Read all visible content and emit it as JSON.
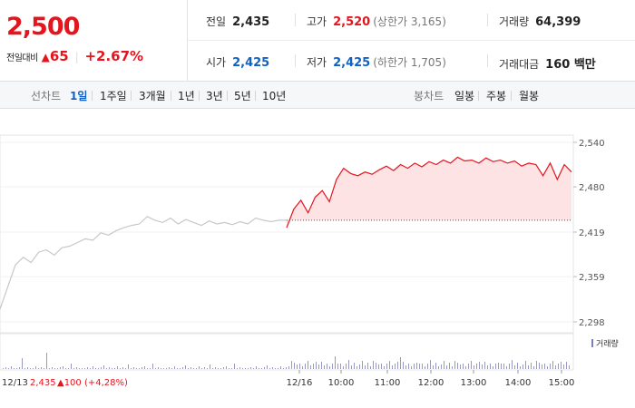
{
  "quote": {
    "price": "2,500",
    "change_label": "전일대비",
    "change_arrow": "▲",
    "change_abs": "65",
    "change_pct": "+2.67%"
  },
  "stats": {
    "prev_close": {
      "label": "전일",
      "value": "2,435"
    },
    "high": {
      "label": "고가",
      "value": "2,520",
      "sub": "(상한가 3,165)"
    },
    "volume": {
      "label": "거래량",
      "value": "64,399"
    },
    "open": {
      "label": "시가",
      "value": "2,425"
    },
    "low": {
      "label": "저가",
      "value": "2,425",
      "sub": "(하한가 1,705)"
    },
    "amount": {
      "label": "거래대금",
      "value": "160 백만"
    }
  },
  "tabs": {
    "line_label": "선차트",
    "line_items": [
      "1일",
      "1주일",
      "3개월",
      "1년",
      "3년",
      "5년",
      "10년"
    ],
    "active_index": 0,
    "candle_label": "봉차트",
    "candle_items": [
      "일봉",
      "주봉",
      "월봉"
    ]
  },
  "chart_data": {
    "type": "line",
    "y_ticks": [
      "2,540",
      "2,480",
      "2,419",
      "2,359",
      "2,298"
    ],
    "ylim": [
      2298,
      2540
    ],
    "prev_day_label": "12/13",
    "prev_day_close": "2,435",
    "prev_day_change": "▲100 (+4,28%)",
    "x_ticks": [
      "12/16",
      "10:00",
      "11:00",
      "12:00",
      "13:00",
      "14:00",
      "15:00"
    ],
    "volume_legend": "거래량",
    "colors": {
      "today": "#e5151e",
      "prev": "#c8c8c8",
      "fill": "#fde3e4",
      "volume": "#7f7fb8"
    },
    "prev_day_series": [
      2315,
      2345,
      2375,
      2385,
      2378,
      2392,
      2395,
      2388,
      2398,
      2400,
      2405,
      2410,
      2408,
      2418,
      2415,
      2421,
      2425,
      2428,
      2430,
      2440,
      2435,
      2432,
      2438,
      2430,
      2436,
      2432,
      2428,
      2434,
      2430,
      2432,
      2429,
      2433,
      2430,
      2438,
      2435,
      2433,
      2435,
      2435
    ],
    "today_series": [
      2425,
      2450,
      2462,
      2445,
      2466,
      2475,
      2460,
      2490,
      2505,
      2498,
      2495,
      2500,
      2497,
      2503,
      2508,
      2502,
      2510,
      2505,
      2512,
      2507,
      2514,
      2510,
      2516,
      2512,
      2520,
      2515,
      2516,
      2512,
      2519,
      2514,
      2516,
      2512,
      2515,
      2508,
      2512,
      2510,
      2495,
      2512,
      2490,
      2510,
      2500
    ]
  }
}
